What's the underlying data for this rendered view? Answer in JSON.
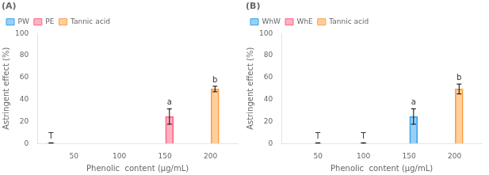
{
  "chart_data": [
    {
      "type": "bar",
      "title": "(A)",
      "x": [
        25,
        155,
        205
      ],
      "series": [
        {
          "name": "PW",
          "values": [
            0.3,
            null,
            null
          ],
          "errors": [
            0.3,
            null,
            null
          ]
        },
        {
          "name": "PE",
          "values": [
            null,
            24.5,
            null
          ],
          "errors": [
            null,
            7.0,
            null
          ]
        },
        {
          "name": "Tannic acid",
          "values": [
            null,
            null,
            49.5
          ],
          "errors": [
            null,
            null,
            2.5
          ]
        }
      ],
      "annotations": [
        {
          "x": 25,
          "text": "T"
        },
        {
          "x": 155,
          "text": "a"
        },
        {
          "x": 205,
          "text": "b"
        }
      ],
      "xlabel": "Phenolic  content (μg/mL)",
      "ylabel": "Astringent effect (%)",
      "xlim": [
        10,
        230
      ],
      "ylim": [
        0,
        100
      ],
      "xticks": [
        50,
        100,
        150,
        200
      ],
      "yticks": [
        0,
        20,
        40,
        60,
        80,
        100
      ],
      "grid": false,
      "legend": "upper left"
    },
    {
      "type": "bar",
      "title": "(B)",
      "x": [
        50,
        100,
        155,
        205
      ],
      "series": [
        {
          "name": "WhW",
          "values": [
            0.3,
            null,
            24.5,
            null
          ],
          "errors": [
            0.3,
            null,
            7.0,
            null
          ]
        },
        {
          "name": "WhE",
          "values": [
            null,
            0.3,
            null,
            null
          ],
          "errors": [
            null,
            0.3,
            null,
            null
          ]
        },
        {
          "name": "Tannic acid",
          "values": [
            null,
            null,
            null,
            49.5
          ],
          "errors": [
            null,
            null,
            null,
            4.5
          ]
        }
      ],
      "annotations": [
        {
          "x": 50,
          "text": "T"
        },
        {
          "x": 100,
          "text": "T"
        },
        {
          "x": 155,
          "text": "a"
        },
        {
          "x": 205,
          "text": "b"
        }
      ],
      "xlabel": "Phenolic  content (μg/mL)",
      "ylabel": "Astringent effect (%)",
      "xlim": [
        10,
        230
      ],
      "ylim": [
        0,
        100
      ],
      "xticks": [
        50,
        100,
        150,
        200
      ],
      "yticks": [
        0,
        20,
        40,
        60,
        80,
        100
      ],
      "grid": false,
      "legend": "upper left"
    }
  ]
}
